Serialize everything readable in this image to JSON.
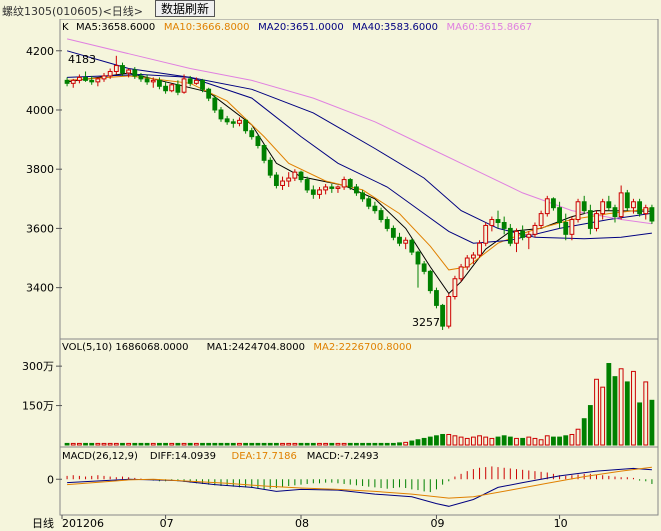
{
  "window": {
    "title": "螺纹1305(010605)<日线>",
    "refresh_button": "数据刷新"
  },
  "colors": {
    "background": "#f5f5dc",
    "up": "#cc0000",
    "down": "#008000",
    "ma5": "#000000",
    "ma10": "#e08000",
    "ma20": "#000080",
    "ma40": "#000080",
    "ma60": "#e080e0"
  },
  "price_panel": {
    "tag": "K",
    "legend": [
      {
        "label": "MA5:3658.6000",
        "color": "#000000"
      },
      {
        "label": "MA10:3666.8000",
        "color": "#e08000"
      },
      {
        "label": "MA20:3651.0000",
        "color": "#000080"
      },
      {
        "label": "MA40:3583.6000",
        "color": "#000080"
      },
      {
        "label": "MA60:3615.8667",
        "color": "#e080e0"
      }
    ],
    "y_ticks": [
      "4200",
      "4000",
      "3800",
      "3600",
      "3400"
    ],
    "high_label": "4183",
    "low_label": "3257"
  },
  "volume_panel": {
    "legend": [
      {
        "label": "VOL(5,10) 1686068.0000",
        "color": "#000000"
      },
      {
        "label": "MA1:2424704.8000",
        "color": "#000000"
      },
      {
        "label": "MA2:2226700.8000",
        "color": "#e08000"
      }
    ],
    "y_ticks": [
      "300万",
      "150万"
    ]
  },
  "macd_panel": {
    "legend": [
      {
        "label": "MACD(26,12,9)",
        "color": "#000000"
      },
      {
        "label": "DIFF:14.0939",
        "color": "#000000"
      },
      {
        "label": "DEA:17.7186",
        "color": "#e08000"
      },
      {
        "label": "MACD:-7.2493",
        "color": "#000000"
      }
    ],
    "y_ticks": [
      "0"
    ]
  },
  "x_axis": {
    "label": "日线",
    "ticks": [
      "201206",
      "07",
      "08",
      "09",
      "10"
    ]
  },
  "chart_data": {
    "type": "candlestick",
    "ylim": [
      3240,
      4260
    ],
    "candles": [
      [
        4100,
        4110,
        4080,
        4090
      ],
      [
        4090,
        4105,
        4075,
        4100
      ],
      [
        4100,
        4120,
        4090,
        4110
      ],
      [
        4110,
        4130,
        4095,
        4100
      ],
      [
        4100,
        4115,
        4085,
        4095
      ],
      [
        4095,
        4110,
        4080,
        4105
      ],
      [
        4105,
        4125,
        4095,
        4115
      ],
      [
        4115,
        4140,
        4105,
        4130
      ],
      [
        4130,
        4183,
        4120,
        4150
      ],
      [
        4150,
        4160,
        4115,
        4125
      ],
      [
        4125,
        4140,
        4110,
        4135
      ],
      [
        4135,
        4145,
        4105,
        4115
      ],
      [
        4115,
        4125,
        4095,
        4105
      ],
      [
        4105,
        4120,
        4085,
        4095
      ],
      [
        4095,
        4110,
        4075,
        4100
      ],
      [
        4100,
        4110,
        4070,
        4080
      ],
      [
        4080,
        4095,
        4055,
        4065
      ],
      [
        4065,
        4090,
        4060,
        4085
      ],
      [
        4085,
        4100,
        4050,
        4060
      ],
      [
        4060,
        4120,
        4055,
        4105
      ],
      [
        4105,
        4115,
        4080,
        4090
      ],
      [
        4090,
        4110,
        4085,
        4100
      ],
      [
        4100,
        4105,
        4060,
        4070
      ],
      [
        4070,
        4075,
        4030,
        4040
      ],
      [
        4040,
        4050,
        3990,
        4000
      ],
      [
        4000,
        4010,
        3960,
        3970
      ],
      [
        3970,
        3980,
        3950,
        3960
      ],
      [
        3960,
        3970,
        3940,
        3955
      ],
      [
        3955,
        3975,
        3945,
        3965
      ],
      [
        3965,
        3970,
        3920,
        3930
      ],
      [
        3930,
        3940,
        3900,
        3910
      ],
      [
        3910,
        3915,
        3870,
        3880
      ],
      [
        3880,
        3885,
        3820,
        3830
      ],
      [
        3830,
        3840,
        3770,
        3780
      ],
      [
        3780,
        3790,
        3735,
        3745
      ],
      [
        3745,
        3775,
        3730,
        3760
      ],
      [
        3760,
        3790,
        3740,
        3770
      ],
      [
        3770,
        3800,
        3760,
        3790
      ],
      [
        3790,
        3795,
        3755,
        3765
      ],
      [
        3765,
        3775,
        3720,
        3730
      ],
      [
        3730,
        3745,
        3700,
        3715
      ],
      [
        3715,
        3740,
        3700,
        3730
      ],
      [
        3730,
        3750,
        3715,
        3740
      ],
      [
        3740,
        3750,
        3720,
        3735
      ],
      [
        3735,
        3745,
        3720,
        3740
      ],
      [
        3740,
        3775,
        3730,
        3765
      ],
      [
        3765,
        3770,
        3730,
        3740
      ],
      [
        3740,
        3750,
        3710,
        3720
      ],
      [
        3720,
        3730,
        3690,
        3700
      ],
      [
        3700,
        3710,
        3665,
        3675
      ],
      [
        3675,
        3690,
        3650,
        3660
      ],
      [
        3660,
        3670,
        3620,
        3630
      ],
      [
        3630,
        3640,
        3590,
        3600
      ],
      [
        3600,
        3610,
        3560,
        3570
      ],
      [
        3570,
        3585,
        3540,
        3550
      ],
      [
        3550,
        3570,
        3530,
        3560
      ],
      [
        3560,
        3565,
        3510,
        3520
      ],
      [
        3520,
        3525,
        3400,
        3480
      ],
      [
        3480,
        3490,
        3445,
        3455
      ],
      [
        3455,
        3460,
        3380,
        3390
      ],
      [
        3390,
        3400,
        3330,
        3340
      ],
      [
        3340,
        3345,
        3257,
        3270
      ],
      [
        3270,
        3380,
        3262,
        3370
      ],
      [
        3370,
        3440,
        3360,
        3430
      ],
      [
        3430,
        3480,
        3420,
        3470
      ],
      [
        3470,
        3510,
        3460,
        3500
      ],
      [
        3500,
        3520,
        3480,
        3510
      ],
      [
        3510,
        3560,
        3500,
        3550
      ],
      [
        3550,
        3620,
        3540,
        3610
      ],
      [
        3610,
        3640,
        3590,
        3630
      ],
      [
        3630,
        3660,
        3600,
        3620
      ],
      [
        3620,
        3640,
        3580,
        3600
      ],
      [
        3600,
        3615,
        3540,
        3550
      ],
      [
        3550,
        3600,
        3520,
        3590
      ],
      [
        3590,
        3610,
        3560,
        3570
      ],
      [
        3570,
        3590,
        3530,
        3580
      ],
      [
        3580,
        3620,
        3570,
        3610
      ],
      [
        3610,
        3660,
        3600,
        3650
      ],
      [
        3650,
        3710,
        3640,
        3700
      ],
      [
        3700,
        3705,
        3660,
        3670
      ],
      [
        3670,
        3690,
        3600,
        3620
      ],
      [
        3620,
        3650,
        3560,
        3580
      ],
      [
        3580,
        3640,
        3560,
        3630
      ],
      [
        3630,
        3700,
        3620,
        3690
      ],
      [
        3690,
        3710,
        3650,
        3660
      ],
      [
        3660,
        3680,
        3580,
        3600
      ],
      [
        3600,
        3660,
        3590,
        3650
      ],
      [
        3650,
        3700,
        3630,
        3690
      ],
      [
        3690,
        3710,
        3660,
        3670
      ],
      [
        3670,
        3680,
        3620,
        3640
      ],
      [
        3640,
        3745,
        3630,
        3720
      ],
      [
        3720,
        3730,
        3660,
        3670
      ],
      [
        3670,
        3700,
        3650,
        3690
      ],
      [
        3690,
        3700,
        3640,
        3650
      ],
      [
        3650,
        3680,
        3630,
        3670
      ],
      [
        3670,
        3680,
        3615,
        3625
      ]
    ],
    "ma_lines": {
      "ma5": [
        [
          0,
          4095
        ],
        [
          10,
          4125
        ],
        [
          17,
          4090
        ],
        [
          23,
          4060
        ],
        [
          30,
          3950
        ],
        [
          34,
          3820
        ],
        [
          38,
          3775
        ],
        [
          45,
          3745
        ],
        [
          50,
          3700
        ],
        [
          55,
          3600
        ],
        [
          59,
          3470
        ],
        [
          62,
          3380
        ],
        [
          64,
          3420
        ],
        [
          68,
          3530
        ],
        [
          72,
          3590
        ],
        [
          77,
          3600
        ],
        [
          82,
          3640
        ],
        [
          86,
          3660
        ],
        [
          95,
          3658
        ]
      ],
      "ma10": [
        [
          0,
          4100
        ],
        [
          10,
          4115
        ],
        [
          20,
          4090
        ],
        [
          26,
          4030
        ],
        [
          32,
          3910
        ],
        [
          36,
          3820
        ],
        [
          42,
          3760
        ],
        [
          48,
          3730
        ],
        [
          54,
          3650
        ],
        [
          59,
          3540
        ],
        [
          62,
          3460
        ],
        [
          65,
          3470
        ],
        [
          70,
          3550
        ],
        [
          75,
          3590
        ],
        [
          82,
          3630
        ],
        [
          88,
          3650
        ],
        [
          95,
          3667
        ]
      ],
      "ma20": [
        [
          0,
          4110
        ],
        [
          12,
          4120
        ],
        [
          20,
          4110
        ],
        [
          30,
          4040
        ],
        [
          38,
          3910
        ],
        [
          44,
          3820
        ],
        [
          52,
          3740
        ],
        [
          58,
          3650
        ],
        [
          62,
          3590
        ],
        [
          66,
          3550
        ],
        [
          72,
          3560
        ],
        [
          80,
          3600
        ],
        [
          88,
          3630
        ],
        [
          95,
          3651
        ]
      ],
      "ma40": [
        [
          0,
          4200
        ],
        [
          10,
          4140
        ],
        [
          20,
          4110
        ],
        [
          30,
          4070
        ],
        [
          40,
          3990
        ],
        [
          50,
          3870
        ],
        [
          58,
          3770
        ],
        [
          64,
          3660
        ],
        [
          70,
          3600
        ],
        [
          76,
          3570
        ],
        [
          84,
          3565
        ],
        [
          90,
          3570
        ],
        [
          95,
          3584
        ]
      ],
      "ma60": [
        [
          0,
          4240
        ],
        [
          10,
          4190
        ],
        [
          20,
          4140
        ],
        [
          30,
          4100
        ],
        [
          40,
          4040
        ],
        [
          50,
          3960
        ],
        [
          58,
          3880
        ],
        [
          66,
          3800
        ],
        [
          74,
          3720
        ],
        [
          82,
          3660
        ],
        [
          90,
          3630
        ],
        [
          95,
          3616
        ]
      ]
    },
    "volume": {
      "ylim": [
        0,
        3500000
      ],
      "values": [
        60000,
        60000,
        60000,
        60000,
        60000,
        60000,
        60000,
        60000,
        60000,
        60000,
        60000,
        60000,
        60000,
        60000,
        60000,
        60000,
        60000,
        60000,
        60000,
        60000,
        60000,
        60000,
        60000,
        60000,
        60000,
        60000,
        60000,
        60000,
        60000,
        60000,
        60000,
        60000,
        60000,
        60000,
        60000,
        60000,
        60000,
        60000,
        60000,
        60000,
        60000,
        60000,
        60000,
        60000,
        60000,
        60000,
        60000,
        60000,
        60000,
        60000,
        60000,
        60000,
        60000,
        60000,
        80000,
        100000,
        150000,
        200000,
        250000,
        300000,
        350000,
        400000,
        400000,
        350000,
        300000,
        250000,
        300000,
        350000,
        300000,
        250000,
        300000,
        350000,
        300000,
        250000,
        250000,
        300000,
        250000,
        200000,
        350000,
        300000,
        300000,
        350000,
        400000,
        600000,
        1000000,
        1500000,
        2500000,
        2200000,
        3100000,
        2600000,
        2900000,
        2400000,
        2800000,
        1600000,
        2400000,
        1700000
      ]
    },
    "macd": {
      "ylim": [
        -50,
        30
      ],
      "hist": [
        5,
        6,
        5,
        4,
        5,
        6,
        5,
        4,
        3,
        4,
        3,
        2,
        1,
        -1,
        -2,
        -3,
        -3,
        -2,
        -3,
        -4,
        -5,
        -6,
        -7,
        -8,
        -9,
        -10,
        -10,
        -11,
        -12,
        -12,
        -13,
        -14,
        -15,
        -14,
        -13,
        -12,
        -10,
        -9,
        -8,
        -7,
        -6,
        -6,
        -5,
        -5,
        -6,
        -7,
        -8,
        -9,
        -10,
        -11,
        -12,
        -13,
        -14,
        -13,
        -12,
        -13,
        -15,
        -16,
        -18,
        -19,
        -15,
        -8,
        -3,
        4,
        8,
        12,
        15,
        17,
        18,
        19,
        18,
        17,
        16,
        15,
        14,
        13,
        12,
        11,
        10,
        8,
        6,
        5,
        6,
        7,
        8,
        8,
        7,
        6,
        5,
        4,
        3,
        3,
        2,
        -2,
        -3,
        -7
      ],
      "diff": [
        [
          0,
          -5
        ],
        [
          6,
          -2
        ],
        [
          10,
          0
        ],
        [
          14,
          -1
        ],
        [
          18,
          -2
        ],
        [
          24,
          -8
        ],
        [
          30,
          -12
        ],
        [
          34,
          -18
        ],
        [
          38,
          -15
        ],
        [
          44,
          -16
        ],
        [
          50,
          -22
        ],
        [
          56,
          -26
        ],
        [
          60,
          -36
        ],
        [
          62,
          -40
        ],
        [
          66,
          -30
        ],
        [
          70,
          -12
        ],
        [
          74,
          -5
        ],
        [
          80,
          5
        ],
        [
          86,
          12
        ],
        [
          92,
          16
        ],
        [
          95,
          14
        ]
      ],
      "dea": [
        [
          0,
          -8
        ],
        [
          6,
          -4
        ],
        [
          10,
          -1
        ],
        [
          14,
          0
        ],
        [
          20,
          -3
        ],
        [
          26,
          -6
        ],
        [
          32,
          -10
        ],
        [
          38,
          -13
        ],
        [
          44,
          -15
        ],
        [
          50,
          -18
        ],
        [
          56,
          -22
        ],
        [
          62,
          -28
        ],
        [
          66,
          -26
        ],
        [
          72,
          -16
        ],
        [
          78,
          -6
        ],
        [
          84,
          4
        ],
        [
          90,
          12
        ],
        [
          95,
          17.7
        ]
      ]
    }
  }
}
